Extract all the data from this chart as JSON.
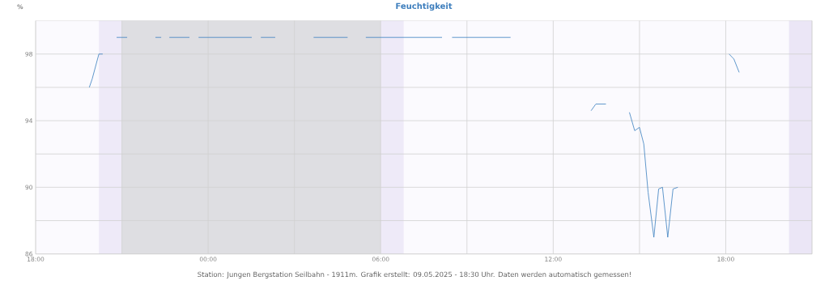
{
  "chart_data": {
    "type": "line",
    "title": "Feuchtigkeit",
    "ylabel": "%",
    "annotations": [
      "Station: Jungen Bergstation Seilbahn - 1911m. Grafik erstellt: 09.05.2025 - 18:30 Uhr. Daten werden automatisch gemessen!"
    ],
    "series": [
      {
        "color": "#3a7fbf",
        "x": [
          "2025-05-08T19:52",
          "2025-05-08T19:58",
          "2025-05-08T20:12",
          "2025-05-08T20:20",
          "2025-05-08T20:36",
          "2025-05-08T20:49",
          "2025-05-08T21:11",
          "2025-05-08T21:42",
          "2025-05-08T22:10",
          "2025-05-08T22:22",
          "2025-05-08T22:30",
          "2025-05-08T22:39",
          "2025-05-08T23:21",
          "2025-05-08T23:30",
          "2025-05-08T23:40",
          "2025-05-09T01:31",
          "2025-05-09T01:42",
          "2025-05-09T01:50",
          "2025-05-09T02:20",
          "2025-05-09T03:00",
          "2025-05-09T03:40",
          "2025-05-09T04:51",
          "2025-05-09T05:12",
          "2025-05-09T05:29",
          "2025-05-09T08:08",
          "2025-05-09T08:18",
          "2025-05-09T08:29",
          "2025-05-09T10:31",
          "2025-05-09T12:00",
          "2025-05-09T13:19",
          "2025-05-09T13:29",
          "2025-05-09T13:50",
          "2025-05-09T14:12",
          "2025-05-09T14:39",
          "2025-05-09T14:50",
          "2025-05-09T15:00",
          "2025-05-09T15:09",
          "2025-05-09T15:18",
          "2025-05-09T15:30",
          "2025-05-09T15:40",
          "2025-05-09T15:48",
          "2025-05-09T15:59",
          "2025-05-09T16:10",
          "2025-05-09T16:20",
          "2025-05-09T17:00",
          "2025-05-09T18:07",
          "2025-05-09T18:17",
          "2025-05-09T18:28"
        ],
        "values": [
          96.0,
          96.5,
          98,
          98,
          null,
          99,
          99,
          null,
          99,
          99,
          null,
          99,
          99,
          null,
          99,
          99,
          null,
          99,
          99,
          null,
          99,
          99,
          null,
          99,
          99,
          null,
          99,
          99,
          null,
          94.6,
          95,
          95,
          null,
          94.5,
          93.4,
          93.6,
          92.6,
          89.7,
          87,
          89.9,
          90,
          87,
          89.9,
          90,
          null,
          98,
          97.7,
          96.9
        ]
      }
    ],
    "xlim": [
      "2025-05-08T18:00",
      "2025-05-09T21:00"
    ],
    "xticks": [
      {
        "value": "2025-05-08T18:00",
        "label": "18:00"
      },
      {
        "value": "2025-05-08T21:00",
        "label": null
      },
      {
        "value": "2025-05-09T00:00",
        "label": "00:00"
      },
      {
        "value": "2025-05-09T03:00",
        "label": null
      },
      {
        "value": "2025-05-09T06:00",
        "label": "06:00"
      },
      {
        "value": "2025-05-09T09:00",
        "label": null
      },
      {
        "value": "2025-05-09T12:00",
        "label": "12:00"
      },
      {
        "value": "2025-05-09T15:00",
        "label": null
      },
      {
        "value": "2025-05-09T18:00",
        "label": "18:00"
      },
      {
        "value": "2025-05-09T21:00",
        "label": null
      }
    ],
    "ylim": [
      86,
      100
    ],
    "yticks": [
      86,
      {
        "value": 88,
        "label": null
      },
      90,
      {
        "value": 92,
        "label": null
      },
      94,
      {
        "value": 96,
        "label": null
      },
      98
    ],
    "bands": [
      {
        "axis": "x",
        "from": "2025-05-08T20:12",
        "to": "2025-05-08T21:00",
        "color": "#eeeaf8"
      },
      {
        "axis": "x",
        "from": "2025-05-08T21:00",
        "to": "2025-05-09T06:00",
        "color": "#dedee2"
      },
      {
        "axis": "x",
        "from": "2025-05-09T06:00",
        "to": "2025-05-09T06:48",
        "color": "#eeeaf8"
      },
      {
        "axis": "x",
        "from": "2025-05-09T20:12",
        "to": "2025-05-09T21:00",
        "color": "#ebe6f6"
      }
    ],
    "grid": true
  }
}
